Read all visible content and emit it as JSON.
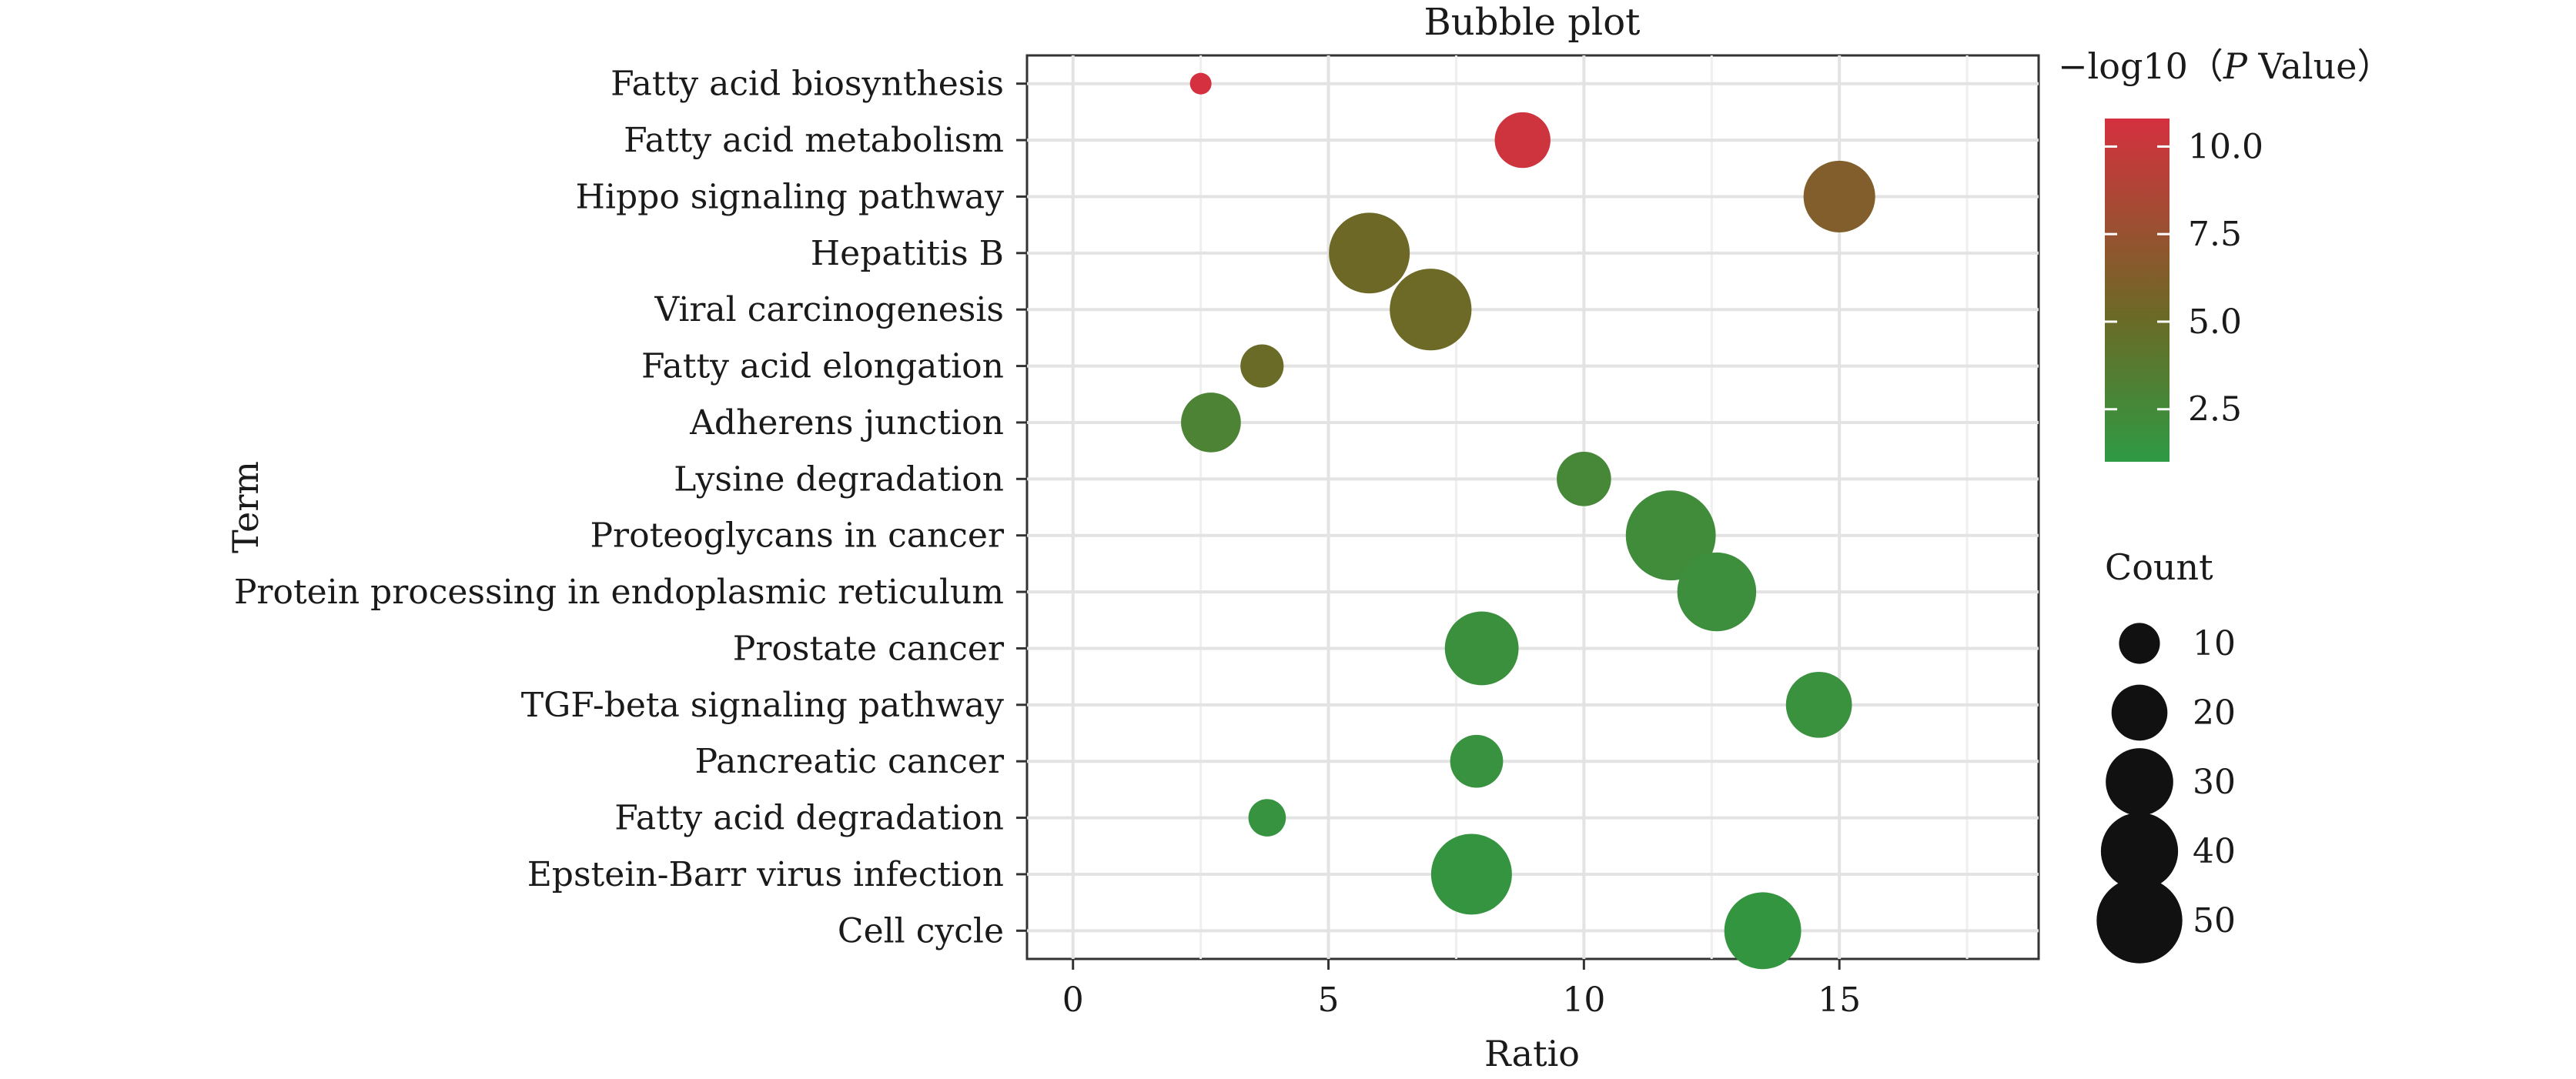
{
  "chart_data": {
    "type": "scatter",
    "subtype": "bubble",
    "title": "Bubble plot",
    "xlabel": "Ratio",
    "ylabel": "Term",
    "xlim": [
      -0.9,
      18.9
    ],
    "x_ticks": [
      0,
      5,
      10,
      15
    ],
    "grid": true,
    "points": [
      {
        "term": "Fatty acid biosynthesis",
        "x": 2.5,
        "count": 3,
        "neg_log10_p": 10.8
      },
      {
        "term": "Fatty acid metabolism",
        "x": 8.8,
        "count": 20,
        "neg_log10_p": 10.4
      },
      {
        "term": "Hippo signaling pathway",
        "x": 15.0,
        "count": 33,
        "neg_log10_p": 6.3
      },
      {
        "term": "Hepatitis B",
        "x": 5.8,
        "count": 42,
        "neg_log10_p": 5.3
      },
      {
        "term": "Viral carcinogenesis",
        "x": 7.0,
        "count": 43,
        "neg_log10_p": 5.2
      },
      {
        "term": "Fatty acid elongation",
        "x": 3.7,
        "count": 12,
        "neg_log10_p": 5.0
      },
      {
        "term": "Adherens junction",
        "x": 2.7,
        "count": 23,
        "neg_log10_p": 3.0
      },
      {
        "term": "Lysine degradation",
        "x": 10.0,
        "count": 19,
        "neg_log10_p": 2.6
      },
      {
        "term": "Proteoglycans in cancer",
        "x": 11.7,
        "count": 52,
        "neg_log10_p": 2.2
      },
      {
        "term": "Protein processing in endoplasmic reticulum",
        "x": 12.6,
        "count": 40,
        "neg_log10_p": 2.0
      },
      {
        "term": "Prostate cancer",
        "x": 8.0,
        "count": 35,
        "neg_log10_p": 1.9
      },
      {
        "term": "TGF-beta signaling pathway",
        "x": 14.6,
        "count": 28,
        "neg_log10_p": 1.8
      },
      {
        "term": "Pancreatic cancer",
        "x": 7.9,
        "count": 18,
        "neg_log10_p": 1.7
      },
      {
        "term": "Fatty acid degradation",
        "x": 3.8,
        "count": 9,
        "neg_log10_p": 1.6
      },
      {
        "term": "Epstein-Barr virus infection",
        "x": 7.8,
        "count": 42,
        "neg_log10_p": 1.5
      },
      {
        "term": "Cell cycle",
        "x": 13.5,
        "count": 38,
        "neg_log10_p": 1.4
      }
    ],
    "color_legend": {
      "title_prefix": "−log10（",
      "title_italic": "P",
      "title_suffix": " Value）",
      "range": [
        1.0,
        10.8
      ],
      "ticks": [
        10.0,
        7.5,
        5.0,
        2.5
      ],
      "tick_labels": [
        "10.0",
        "7.5",
        "5.0",
        "2.5"
      ],
      "low_color": "#2e9a44",
      "mid_color": "#6b6a26",
      "high_color": "#d5303f"
    },
    "size_legend": {
      "title": "Count",
      "values": [
        10,
        20,
        30,
        40,
        50
      ],
      "labels": [
        "10",
        "20",
        "30",
        "40",
        "50"
      ],
      "color": "#111111"
    },
    "legend_position": "right"
  }
}
